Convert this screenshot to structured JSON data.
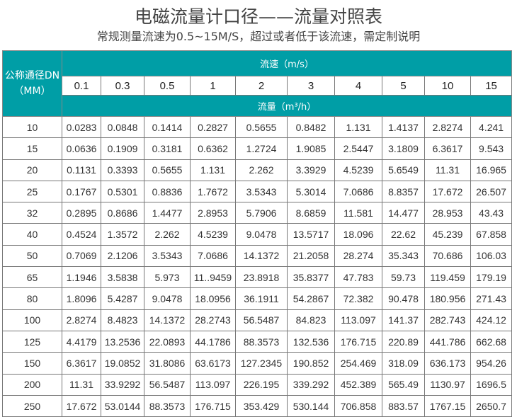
{
  "title": "电磁流量计口径——流量对照表",
  "subtitle": "常规测量流速为0.5~15M/S，超过或者低于该流速，需定制说明",
  "table": {
    "dn_header_line1": "公称通径DN",
    "dn_header_line2": "（MM）",
    "speed_header": "流速（m/s）",
    "flow_header": "流量（m³/h）",
    "speeds": [
      "0.1",
      "0.3",
      "0.5",
      "1",
      "2",
      "3",
      "4",
      "5",
      "10",
      "15"
    ],
    "rows": [
      [
        "10",
        "0.0283",
        "0.0848",
        "0.1414",
        "0.2827",
        "0.5655",
        "0.8482",
        "1.131",
        "1.4137",
        "2.8274",
        "4.241"
      ],
      [
        "15",
        "0.0636",
        "0.1909",
        "0.3181",
        "0.6362",
        "1.2724",
        "1.9085",
        "2.5447",
        "3.1809",
        "6.3617",
        "9.543"
      ],
      [
        "20",
        "0.1131",
        "0.3393",
        "0.5655",
        "1.131",
        "2.262",
        "3.3929",
        "4.5239",
        "5.6549",
        "11.31",
        "16.965"
      ],
      [
        "25",
        "0.1767",
        "0.5301",
        "0.8836",
        "1.7672",
        "3.5343",
        "5.3014",
        "7.0686",
        "8.8357",
        "17.672",
        "26.507"
      ],
      [
        "32",
        "0.2895",
        "0.8686",
        "1.4477",
        "2.8953",
        "5.7906",
        "8.6859",
        "11.581",
        "14.477",
        "28.953",
        "43.43"
      ],
      [
        "40",
        "0.4524",
        "1.3572",
        "2.262",
        "4.5239",
        "9.0478",
        "13.5717",
        "18.096",
        "22.62",
        "45.239",
        "67.858"
      ],
      [
        "50",
        "0.7069",
        "2.1206",
        "3.5343",
        "7.0686",
        "14.1372",
        "21.2058",
        "28.274",
        "35.343",
        "70.686",
        "106.03"
      ],
      [
        "65",
        "1.1946",
        "3.5838",
        "5.973",
        "11..9459",
        "23.8918",
        "35.8377",
        "47.783",
        "59.73",
        "119.459",
        "179.19"
      ],
      [
        "80",
        "1.8096",
        "5.4287",
        "9.0478",
        "18.0956",
        "36.1911",
        "54.2867",
        "72.382",
        "90.478",
        "180.956",
        "271.43"
      ],
      [
        "100",
        "2.8274",
        "8.4823",
        "14.1372",
        "28.2743",
        "56.5487",
        "84.823",
        "113.097",
        "141.37",
        "282.743",
        "424.12"
      ],
      [
        "125",
        "4.4179",
        "13.2536",
        "22.0893",
        "44.1786",
        "88.3573",
        "132.536",
        "176.715",
        "220.89",
        "441.786",
        "662.68"
      ],
      [
        "150",
        "6.3617",
        "19.0852",
        "31.8086",
        "63.6173",
        "127.2345",
        "190.852",
        "254.469",
        "318.09",
        "636.173",
        "954.26"
      ],
      [
        "200",
        "11.31",
        "33.9292",
        "56.5487",
        "113.097",
        "226.195",
        "339.292",
        "452.389",
        "565.49",
        "1130.97",
        "1696.5"
      ],
      [
        "250",
        "17.672",
        "53.0144",
        "88.3573",
        "176.715",
        "353.429",
        "530.144",
        "706.858",
        "883.57",
        "1767.15",
        "2650.7"
      ]
    ]
  },
  "colors": {
    "header_teal": "#009ea6"
  }
}
